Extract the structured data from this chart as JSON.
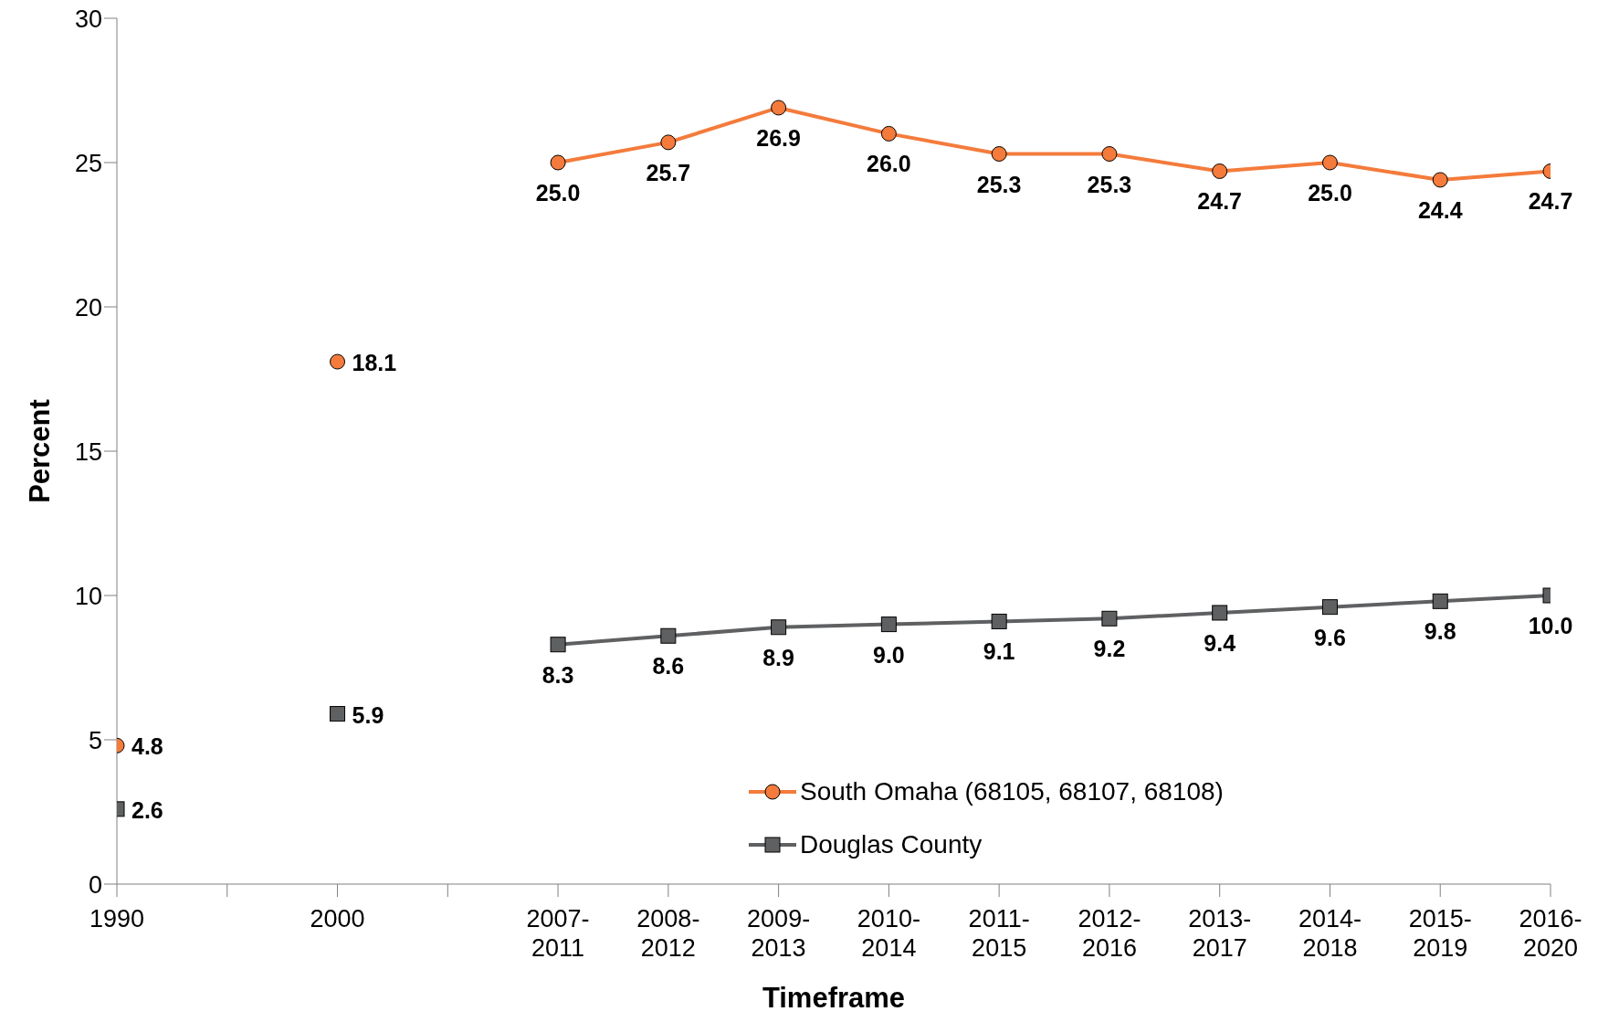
{
  "chart_data": {
    "type": "line",
    "xlabel": "Timeframe",
    "ylabel": "Percent",
    "categories": [
      "1990",
      null,
      "2000",
      null,
      "2007-2011",
      "2008-2012",
      "2009-2013",
      "2010-2014",
      "2011-2015",
      "2012-2016",
      "2013-2017",
      "2014-2018",
      "2015-2019",
      "2016-2020"
    ],
    "series": [
      {
        "name": "South Omaha (68105, 68107, 68108)",
        "color": "#f47b3c",
        "marker": "circle",
        "values": [
          4.8,
          null,
          18.1,
          null,
          25.0,
          25.7,
          26.9,
          26.0,
          25.3,
          25.3,
          24.7,
          25.0,
          24.4,
          24.7
        ],
        "value_labels": [
          "4.8",
          null,
          "18.1",
          null,
          "25.0",
          "25.7",
          "26.9",
          "26.0",
          "25.3",
          "25.3",
          "24.7",
          "25.0",
          "24.4",
          "24.7"
        ]
      },
      {
        "name": "Douglas County",
        "color": "#5f6062",
        "marker": "square",
        "values": [
          2.6,
          null,
          5.9,
          null,
          8.3,
          8.6,
          8.9,
          9.0,
          9.1,
          9.2,
          9.4,
          9.6,
          9.8,
          10.0
        ],
        "value_labels": [
          "2.6",
          null,
          "5.9",
          null,
          "8.3",
          "8.6",
          "8.9",
          "9.0",
          "9.1",
          "9.2",
          "9.4",
          "9.6",
          "9.8",
          "10.0"
        ]
      }
    ],
    "ylim": [
      0,
      30
    ],
    "yticks": [
      0,
      5,
      10,
      15,
      20,
      25,
      30
    ],
    "grid": false,
    "legend": "bottom",
    "line_style": "solid"
  }
}
